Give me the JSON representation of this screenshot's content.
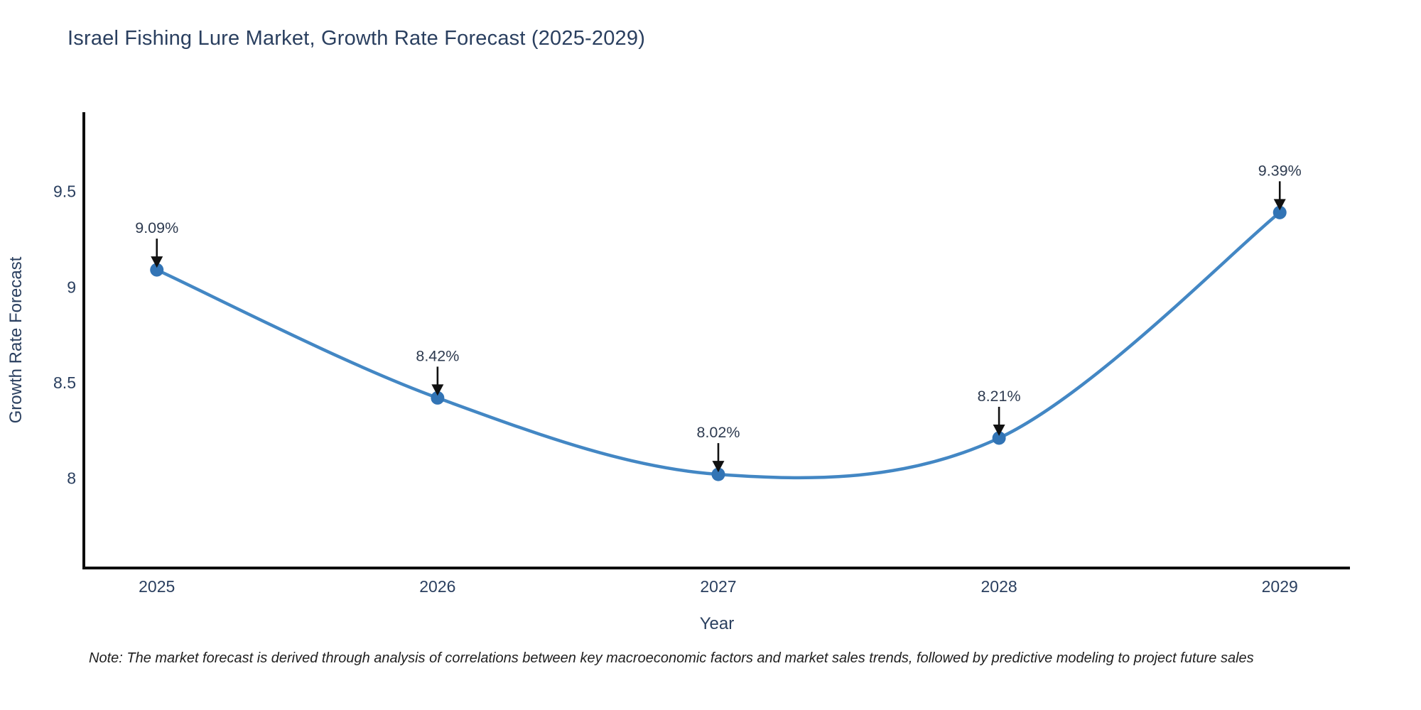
{
  "chart_data": {
    "type": "line",
    "line_shape": "spline",
    "title": "Israel Fishing Lure Market, Growth Rate Forecast (2025-2029)",
    "xlabel": "Year",
    "ylabel": "Growth Rate Forecast",
    "categories": [
      "2025",
      "2026",
      "2027",
      "2028",
      "2029"
    ],
    "x": [
      2025,
      2026,
      2027,
      2028,
      2029
    ],
    "values": [
      9.09,
      8.42,
      8.02,
      8.21,
      9.39
    ],
    "point_labels": [
      "9.09%",
      "8.42%",
      "8.02%",
      "8.21%",
      "9.39%"
    ],
    "yticks": [
      8,
      8.5,
      9,
      9.5
    ],
    "ytick_labels": [
      "8",
      "8.5",
      "9",
      "9.5"
    ],
    "xlim": [
      2024.74,
      2029.25
    ],
    "ylim": [
      7.53,
      9.915
    ],
    "grid": false,
    "legend": false,
    "footnote": "Note: The market forecast is derived through analysis of correlations between key macroeconomic factors and market sales trends, followed by predictive modeling to project future sales"
  },
  "colors": {
    "background": "#ffffff",
    "title_text": "#2a3f5f",
    "axis_line": "#0d0d0d",
    "tick_text": "#2a3f5f",
    "axis_title_text": "#2a3f5f",
    "series_line": "#4387c4",
    "marker_fill": "#3274b5",
    "annotation_text": "#2e3b50",
    "arrow": "#111111",
    "note_text": "#1f1f1f"
  },
  "icons": []
}
